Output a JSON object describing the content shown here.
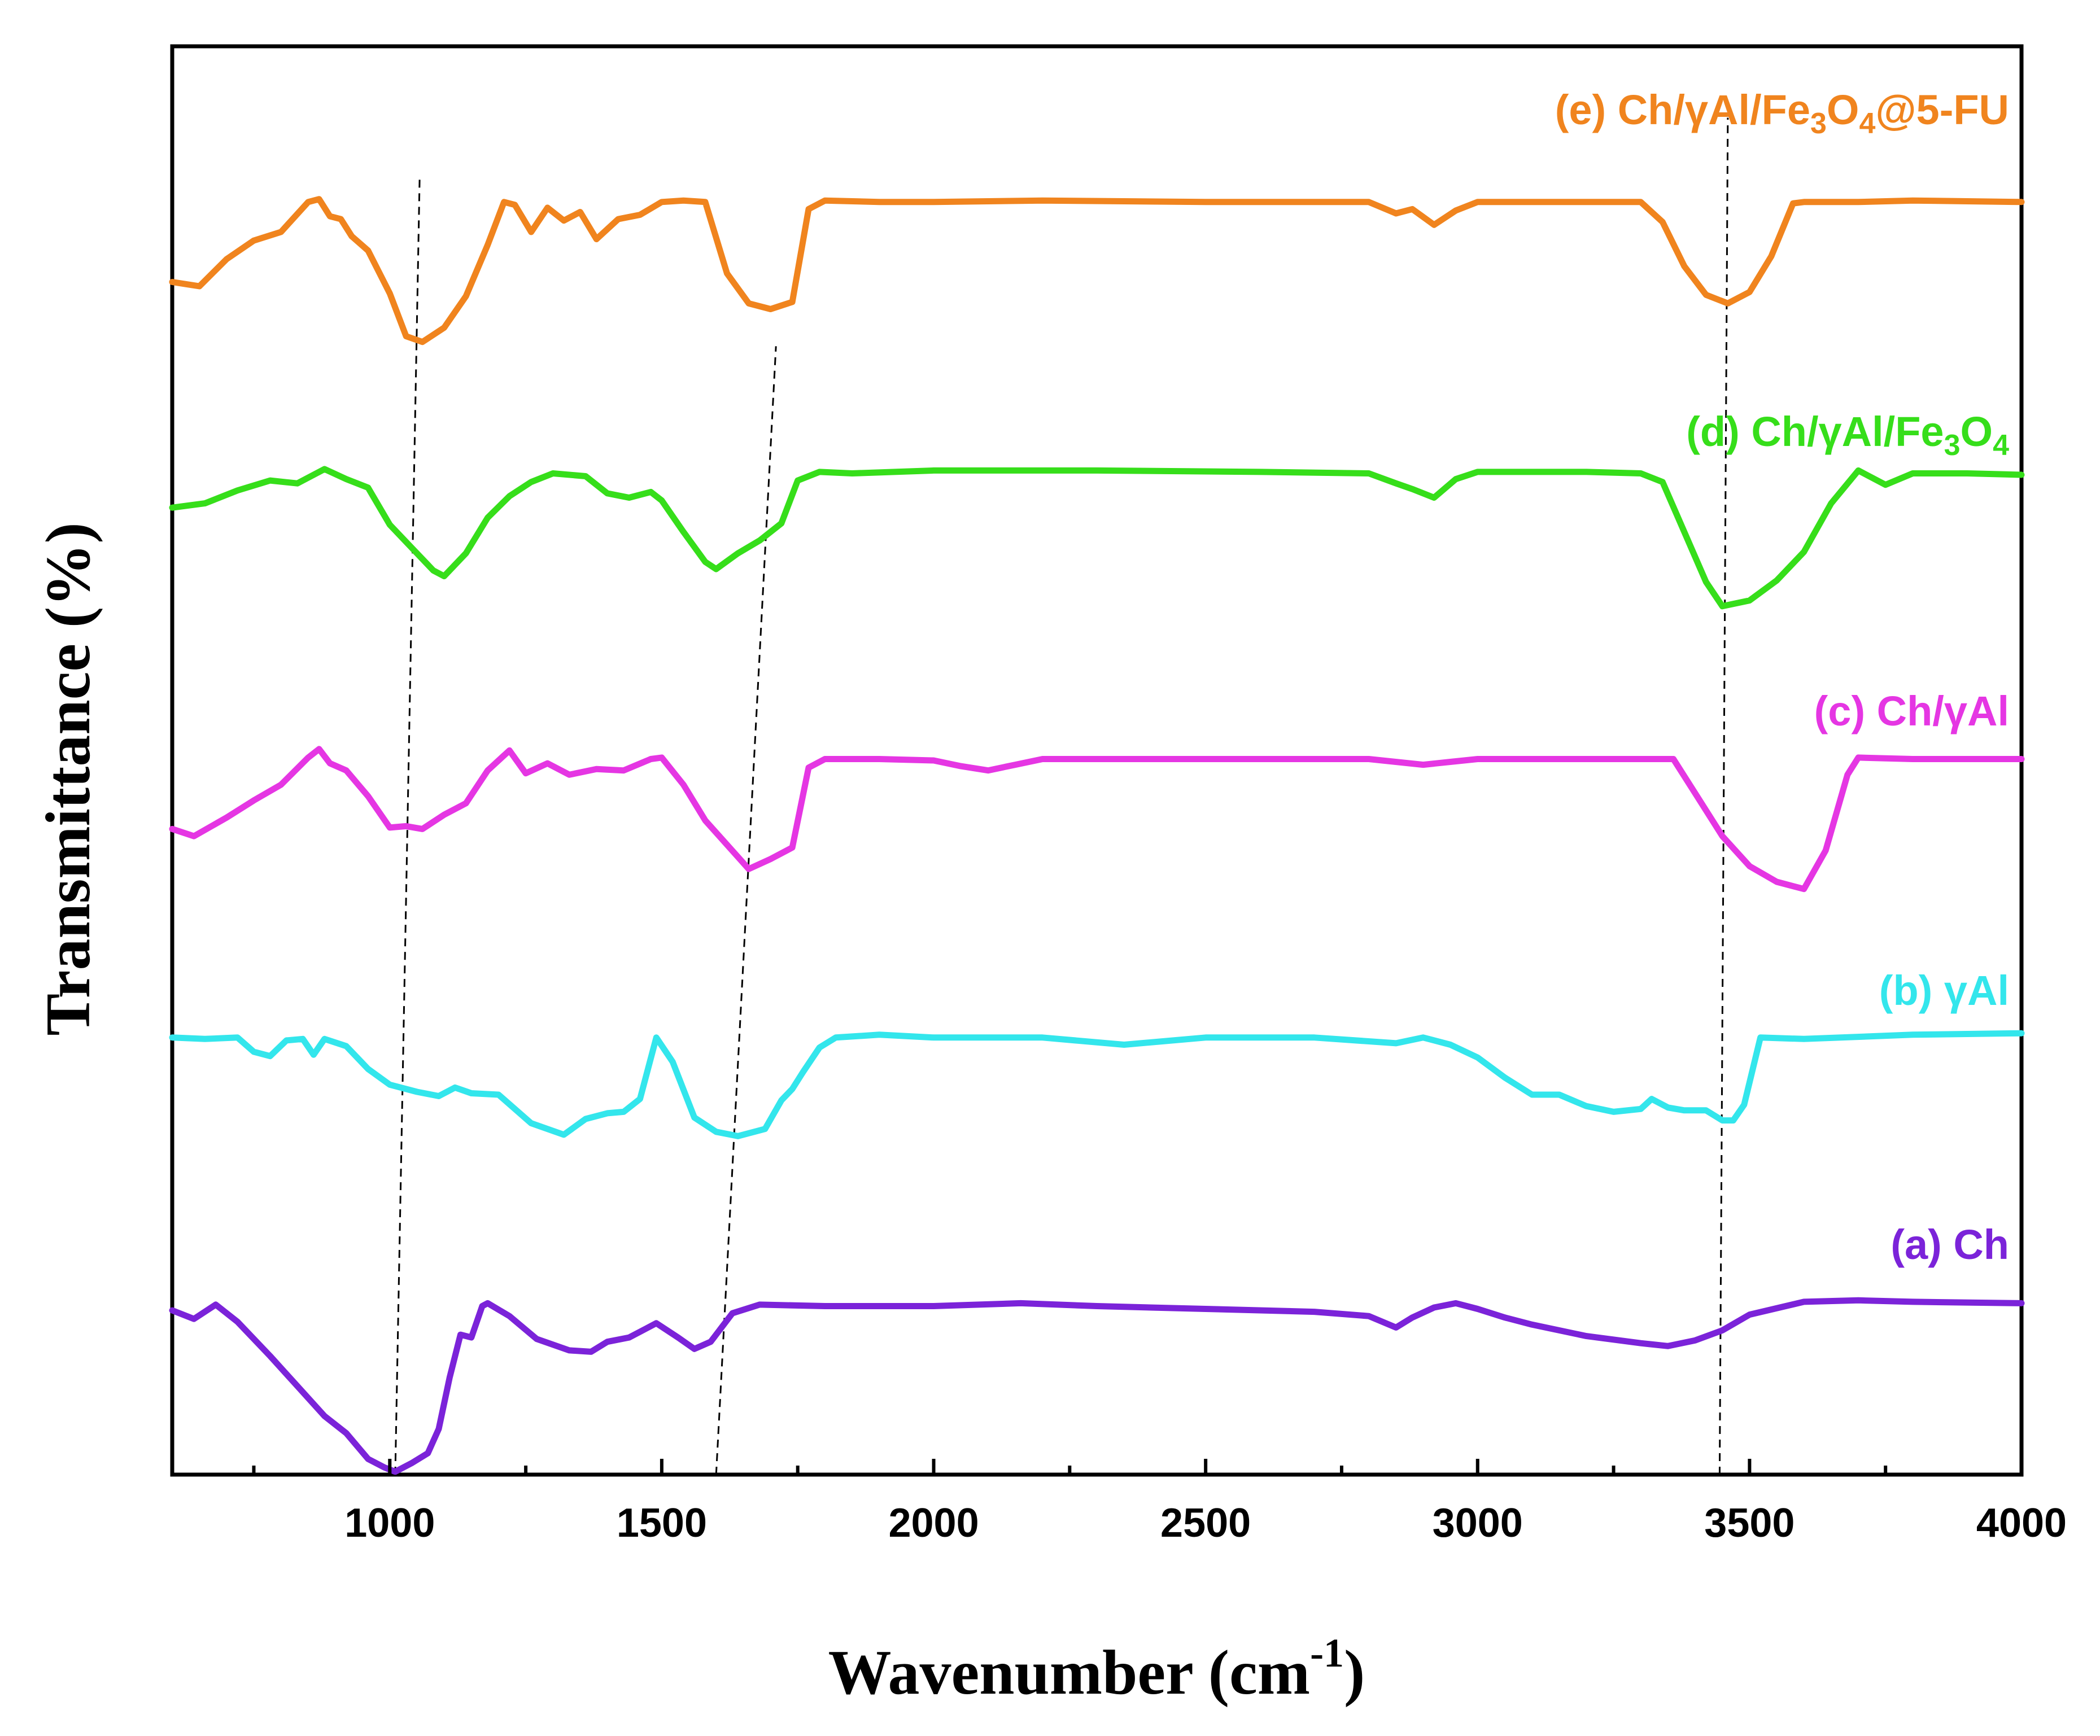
{
  "chart_data": {
    "type": "line",
    "title": "",
    "xlabel": "Wavenumber (cm-1)",
    "xlabel_main": "Wavenumber (cm",
    "xlabel_sup": "-1",
    "xlabel_end": ")",
    "ylabel": "Transmittance (%)",
    "xlim": [
      600,
      4000
    ],
    "ylim": [
      0,
      100
    ],
    "x_ticks": [
      1000,
      1500,
      2000,
      2500,
      3000,
      3500,
      4000
    ],
    "y_ticks_shown": false,
    "legend": "inline labels at right end of each curve",
    "reference_lines": [
      {
        "name": "ref-line-1",
        "from": [
          1010,
          0
        ],
        "to": [
          1055,
          91
        ]
      },
      {
        "name": "ref-line-2",
        "from": [
          1600,
          0
        ],
        "to": [
          1710,
          79
        ]
      },
      {
        "name": "ref-line-3",
        "from": [
          3445,
          0
        ],
        "to": [
          3460,
          95
        ]
      }
    ],
    "series": [
      {
        "name": "(a) Ch",
        "label_parts": [
          {
            "t": "(a) Ch"
          }
        ],
        "color": "#7B23D9",
        "x": [
          600,
          640,
          680,
          720,
          780,
          830,
          880,
          920,
          960,
          990,
          1010,
          1040,
          1070,
          1090,
          1110,
          1130,
          1150,
          1170,
          1180,
          1220,
          1270,
          1330,
          1370,
          1400,
          1440,
          1490,
          1530,
          1560,
          1590,
          1630,
          1680,
          1800,
          2000,
          2160,
          2300,
          2500,
          2700,
          2800,
          2850,
          2880,
          2920,
          2960,
          3000,
          3050,
          3100,
          3200,
          3300,
          3350,
          3400,
          3450,
          3500,
          3600,
          3700,
          3800,
          4000
        ],
        "y": [
          11.5,
          10.9,
          11.9,
          10.7,
          8.3,
          6.2,
          4.1,
          2.9,
          1.1,
          0.5,
          0.2,
          0.8,
          1.5,
          3.2,
          6.8,
          9.8,
          9.6,
          11.8,
          12.0,
          11.1,
          9.5,
          8.7,
          8.6,
          9.3,
          9.6,
          10.6,
          9.6,
          8.8,
          9.3,
          11.3,
          11.9,
          11.8,
          11.8,
          12.0,
          11.8,
          11.6,
          11.4,
          11.1,
          10.3,
          11.0,
          11.7,
          12.0,
          11.6,
          11.0,
          10.5,
          9.7,
          9.2,
          9.0,
          9.4,
          10.1,
          11.2,
          12.1,
          12.2,
          12.1,
          12.0
        ]
      },
      {
        "name": "(b) γAl",
        "label_parts": [
          {
            "t": "(b) γAl"
          }
        ],
        "color": "#33E6EC",
        "x": [
          600,
          660,
          720,
          750,
          780,
          810,
          840,
          860,
          880,
          920,
          960,
          1000,
          1050,
          1090,
          1120,
          1150,
          1200,
          1260,
          1320,
          1360,
          1400,
          1430,
          1460,
          1490,
          1520,
          1560,
          1600,
          1640,
          1690,
          1720,
          1740,
          1760,
          1790,
          1820,
          1900,
          2000,
          2200,
          2350,
          2500,
          2700,
          2850,
          2900,
          2950,
          3000,
          3050,
          3100,
          3150,
          3200,
          3250,
          3300,
          3320,
          3350,
          3380,
          3420,
          3450,
          3470,
          3490,
          3520,
          3600,
          3800,
          4000
        ],
        "y": [
          30.6,
          30.5,
          30.6,
          29.6,
          29.3,
          30.4,
          30.5,
          29.4,
          30.5,
          30.0,
          28.4,
          27.3,
          26.8,
          26.5,
          27.1,
          26.7,
          26.6,
          24.6,
          23.8,
          24.9,
          25.3,
          25.4,
          26.3,
          30.6,
          28.9,
          25.0,
          24.0,
          23.7,
          24.2,
          26.2,
          27.0,
          28.2,
          29.9,
          30.6,
          30.8,
          30.6,
          30.6,
          30.1,
          30.6,
          30.6,
          30.2,
          30.6,
          30.1,
          29.2,
          27.8,
          26.6,
          26.6,
          25.8,
          25.4,
          25.6,
          26.3,
          25.7,
          25.5,
          25.5,
          24.8,
          24.8,
          25.9,
          30.6,
          30.5,
          30.8,
          30.9
        ]
      },
      {
        "name": "(c) Ch/γAl",
        "label_parts": [
          {
            "t": "(c) Ch/γAl"
          }
        ],
        "color": "#E536E3",
        "x": [
          600,
          640,
          700,
          750,
          800,
          850,
          870,
          890,
          920,
          960,
          1000,
          1030,
          1060,
          1100,
          1140,
          1180,
          1220,
          1250,
          1290,
          1330,
          1380,
          1430,
          1480,
          1500,
          1540,
          1580,
          1620,
          1660,
          1700,
          1740,
          1770,
          1800,
          1900,
          2000,
          2050,
          2100,
          2150,
          2200,
          2300,
          2500,
          2800,
          2900,
          2950,
          3000,
          3200,
          3360,
          3400,
          3450,
          3500,
          3550,
          3600,
          3640,
          3680,
          3700,
          3800,
          4000
        ],
        "y": [
          45.2,
          44.7,
          46.0,
          47.2,
          48.3,
          50.2,
          50.8,
          49.8,
          49.3,
          47.5,
          45.3,
          45.4,
          45.2,
          46.2,
          47.0,
          49.3,
          50.7,
          49.1,
          49.8,
          49.0,
          49.4,
          49.3,
          50.1,
          50.2,
          48.3,
          45.8,
          44.1,
          42.4,
          43.1,
          43.9,
          49.5,
          50.1,
          50.1,
          50.0,
          49.6,
          49.3,
          49.7,
          50.1,
          50.1,
          50.1,
          50.1,
          49.7,
          49.9,
          50.1,
          50.1,
          50.1,
          47.7,
          44.7,
          42.6,
          41.5,
          41.0,
          43.7,
          49.0,
          50.2,
          50.1,
          50.1
        ]
      },
      {
        "name": "(d) Ch/γAl/Fe3O4",
        "label_parts": [
          {
            "t": "(d)  Ch/γAl/Fe"
          },
          {
            "t": "3",
            "sub": true
          },
          {
            "t": "O"
          },
          {
            "t": "4",
            "sub": true
          }
        ],
        "color": "#36DE1A",
        "x": [
          600,
          660,
          720,
          780,
          830,
          880,
          920,
          960,
          1000,
          1040,
          1080,
          1100,
          1140,
          1180,
          1220,
          1260,
          1300,
          1360,
          1400,
          1440,
          1480,
          1500,
          1540,
          1580,
          1600,
          1640,
          1680,
          1720,
          1750,
          1790,
          1850,
          2000,
          2300,
          2600,
          2800,
          2850,
          2880,
          2920,
          2960,
          3000,
          3100,
          3200,
          3300,
          3340,
          3380,
          3420,
          3450,
          3500,
          3550,
          3600,
          3650,
          3700,
          3750,
          3800,
          3900,
          4000
        ],
        "y": [
          67.7,
          68.0,
          68.9,
          69.6,
          69.4,
          70.4,
          69.7,
          69.1,
          66.5,
          64.9,
          63.3,
          62.9,
          64.5,
          67.0,
          68.5,
          69.5,
          70.1,
          69.9,
          68.7,
          68.4,
          68.8,
          68.2,
          66.0,
          63.9,
          63.4,
          64.5,
          65.4,
          66.6,
          69.6,
          70.2,
          70.1,
          70.3,
          70.3,
          70.2,
          70.1,
          69.4,
          69.0,
          68.4,
          69.7,
          70.2,
          70.2,
          70.2,
          70.1,
          69.5,
          66.0,
          62.5,
          60.8,
          61.2,
          62.6,
          64.6,
          68.0,
          70.3,
          69.3,
          70.1,
          70.1,
          70.0
        ]
      },
      {
        "name": "(e) Ch/γAl/Fe3O4@5-FU",
        "label_parts": [
          {
            "t": "(e) Ch/γAl/Fe"
          },
          {
            "t": "3",
            "sub": true
          },
          {
            "t": "O"
          },
          {
            "t": "4",
            "sub": true
          },
          {
            "t": "@5-FU"
          }
        ],
        "color": "#F0841E",
        "x": [
          600,
          650,
          700,
          750,
          800,
          850,
          870,
          890,
          910,
          930,
          960,
          1000,
          1030,
          1060,
          1100,
          1140,
          1180,
          1210,
          1230,
          1260,
          1290,
          1320,
          1350,
          1380,
          1420,
          1460,
          1500,
          1540,
          1580,
          1620,
          1660,
          1700,
          1740,
          1770,
          1800,
          1900,
          2000,
          2200,
          2500,
          2800,
          2850,
          2880,
          2920,
          2960,
          3000,
          3100,
          3300,
          3340,
          3380,
          3420,
          3460,
          3500,
          3540,
          3580,
          3600,
          3700,
          3800,
          4000
        ],
        "y": [
          83.5,
          83.2,
          85.1,
          86.4,
          87.0,
          89.1,
          89.3,
          88.1,
          87.9,
          86.7,
          85.7,
          82.7,
          79.7,
          79.3,
          80.3,
          82.5,
          86.1,
          89.1,
          88.9,
          87.0,
          88.7,
          87.8,
          88.4,
          86.5,
          87.9,
          88.2,
          89.1,
          89.2,
          89.1,
          84.1,
          82.0,
          81.6,
          82.1,
          88.6,
          89.2,
          89.1,
          89.1,
          89.2,
          89.1,
          89.1,
          88.3,
          88.6,
          87.5,
          88.5,
          89.1,
          89.1,
          89.1,
          87.7,
          84.6,
          82.6,
          82.0,
          82.8,
          85.3,
          89.0,
          89.1,
          89.1,
          89.2,
          89.1
        ]
      }
    ]
  }
}
